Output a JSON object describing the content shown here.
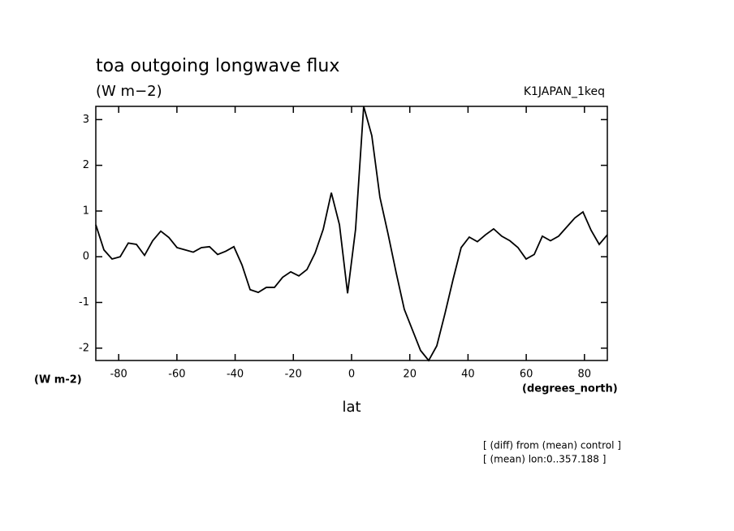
{
  "chart_data": {
    "type": "line",
    "title": "toa outgoing longwave flux",
    "subtitle": "(W m−2)",
    "run_label": "K1JAPAN_1keq",
    "y_unit_label": "(W m-2)",
    "x_unit_label": "(degrees_north)",
    "x_label": "lat",
    "notes": [
      "[ (diff) from (mean) control ]",
      "[ (mean) lon:0..357.188 ]"
    ],
    "x": [
      -87.86,
      -85.07,
      -82.28,
      -79.49,
      -76.7,
      -73.91,
      -71.12,
      -68.33,
      -65.54,
      -62.75,
      -59.96,
      -57.17,
      -54.38,
      -51.59,
      -48.8,
      -46.01,
      -43.22,
      -40.43,
      -37.64,
      -34.85,
      -32.06,
      -29.27,
      -26.48,
      -23.69,
      -20.9,
      -18.11,
      -15.32,
      -12.53,
      -9.74,
      -6.95,
      -4.16,
      -1.37,
      1.37,
      4.16,
      6.95,
      9.74,
      12.53,
      15.32,
      18.11,
      20.9,
      23.69,
      26.48,
      29.27,
      32.06,
      34.85,
      37.64,
      40.43,
      43.22,
      46.01,
      48.8,
      51.59,
      54.38,
      57.17,
      59.96,
      62.75,
      65.54,
      68.33,
      71.12,
      73.91,
      76.7,
      79.49,
      82.28,
      85.07,
      87.86
    ],
    "series": [
      {
        "color": "#000000",
        "values": [
          0.7,
          0.15,
          -0.05,
          0,
          0.3,
          0.27,
          0.03,
          0.35,
          0.56,
          0.42,
          0.2,
          0.15,
          0.1,
          0.2,
          0.22,
          0.05,
          0.12,
          0.22,
          -0.18,
          -0.72,
          -0.78,
          -0.67,
          -0.67,
          -0.45,
          -0.33,
          -0.42,
          -0.28,
          0.08,
          0.6,
          1.4,
          0.7,
          -0.8,
          0.6,
          3.29,
          2.65,
          1.3,
          0.5,
          -0.35,
          -1.15,
          -1.6,
          -2.05,
          -2.27,
          -1.95,
          -1.25,
          -0.5,
          0.2,
          0.43,
          0.33,
          0.48,
          0.61,
          0.45,
          0.35,
          0.2,
          -0.05,
          0.05,
          0.45,
          0.35,
          0.45,
          0.65,
          0.85,
          0.98,
          0.58,
          0.27,
          0.48
        ]
      }
    ],
    "xlim": [
      -87.86,
      87.86
    ],
    "ylim": [
      -2.27,
      3.29
    ],
    "xticks": [
      -80,
      -60,
      -40,
      -20,
      0,
      20,
      40,
      60,
      80
    ],
    "yticks": [
      -2,
      -1,
      0,
      1,
      2,
      3
    ]
  }
}
